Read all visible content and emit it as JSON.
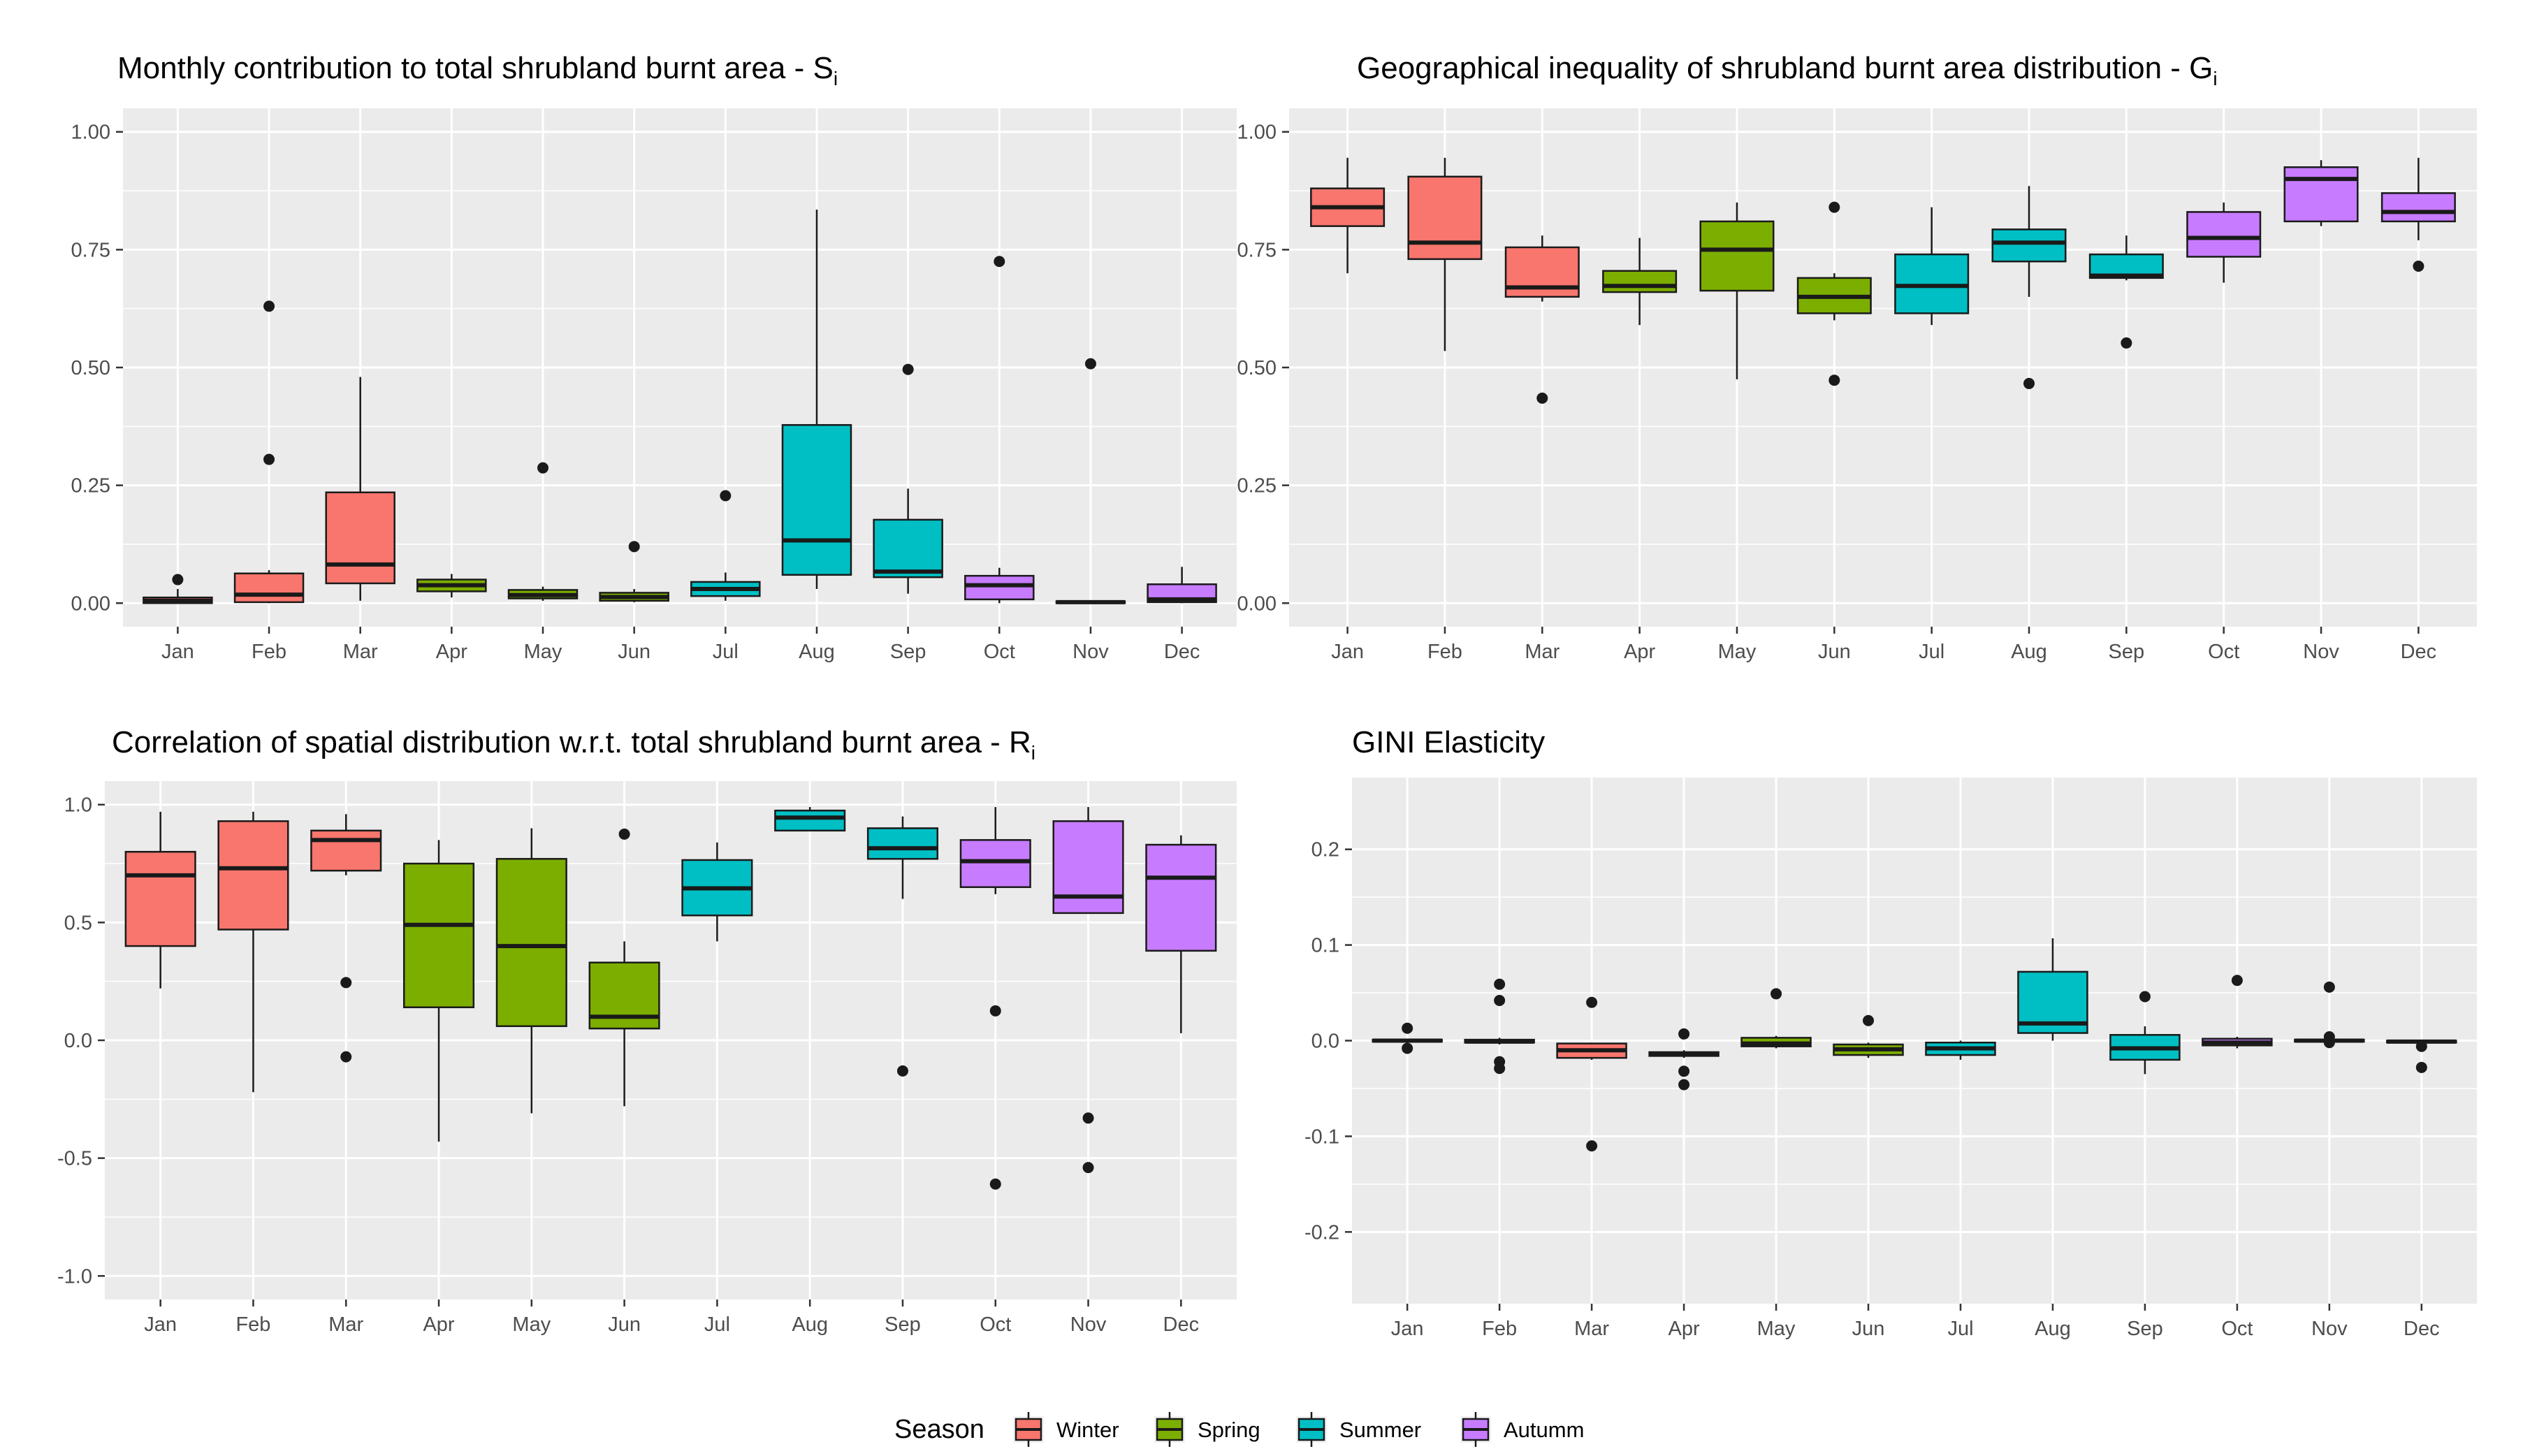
{
  "colors": {
    "winter": "#F8766D",
    "spring": "#7CAE00",
    "summer": "#00BFC4",
    "autumn": "#C77CFF",
    "panel_bg": "#EBEBEB",
    "grid": "#FFFFFF",
    "axis_text": "#4D4D4D",
    "title_text": "#000000"
  },
  "legend": {
    "title": "Season",
    "items": [
      {
        "label": "Winter",
        "season": "winter"
      },
      {
        "label": "Spring",
        "season": "spring"
      },
      {
        "label": "Summer",
        "season": "summer"
      },
      {
        "label": "Autumm",
        "season": "autumn"
      }
    ]
  },
  "chart_data": [
    {
      "type": "box",
      "title": "Monthly contribution to total shrubland burnt area - S",
      "title_sub": "i",
      "ylim": [
        -0.05,
        1.05
      ],
      "yticks": [
        0.0,
        0.25,
        0.5,
        0.75,
        1.0
      ],
      "ytick_labels": [
        "0.00",
        "0.25",
        "0.50",
        "0.75",
        "1.00"
      ],
      "categories": [
        "Jan",
        "Feb",
        "Mar",
        "Apr",
        "May",
        "Jun",
        "Jul",
        "Aug",
        "Sep",
        "Oct",
        "Nov",
        "Dec"
      ],
      "boxes": [
        {
          "season": "winter",
          "min": 0.0,
          "q1": 0.0,
          "median": 0.005,
          "q3": 0.012,
          "max": 0.03,
          "outliers": [
            0.05
          ]
        },
        {
          "season": "winter",
          "min": 0.0,
          "q1": 0.002,
          "median": 0.018,
          "q3": 0.063,
          "max": 0.07,
          "outliers": [
            0.63,
            0.305
          ]
        },
        {
          "season": "winter",
          "min": 0.005,
          "q1": 0.042,
          "median": 0.082,
          "q3": 0.235,
          "max": 0.48,
          "outliers": []
        },
        {
          "season": "spring",
          "min": 0.012,
          "q1": 0.025,
          "median": 0.038,
          "q3": 0.05,
          "max": 0.062,
          "outliers": []
        },
        {
          "season": "spring",
          "min": 0.005,
          "q1": 0.01,
          "median": 0.017,
          "q3": 0.028,
          "max": 0.035,
          "outliers": [
            0.287
          ]
        },
        {
          "season": "spring",
          "min": 0.002,
          "q1": 0.005,
          "median": 0.013,
          "q3": 0.022,
          "max": 0.03,
          "outliers": [
            0.12
          ]
        },
        {
          "season": "summer",
          "min": 0.005,
          "q1": 0.015,
          "median": 0.03,
          "q3": 0.045,
          "max": 0.065,
          "outliers": [
            0.228
          ]
        },
        {
          "season": "summer",
          "min": 0.03,
          "q1": 0.06,
          "median": 0.133,
          "q3": 0.378,
          "max": 0.835,
          "outliers": []
        },
        {
          "season": "summer",
          "min": 0.02,
          "q1": 0.055,
          "median": 0.067,
          "q3": 0.177,
          "max": 0.243,
          "outliers": [
            0.496
          ]
        },
        {
          "season": "autumn",
          "min": 0.0,
          "q1": 0.008,
          "median": 0.038,
          "q3": 0.058,
          "max": 0.075,
          "outliers": [
            0.725
          ]
        },
        {
          "season": "autumn",
          "min": 0.0,
          "q1": 0.0,
          "median": 0.002,
          "q3": 0.004,
          "max": 0.006,
          "outliers": [
            0.508
          ]
        },
        {
          "season": "autumn",
          "min": 0.0,
          "q1": 0.002,
          "median": 0.008,
          "q3": 0.04,
          "max": 0.077,
          "outliers": []
        }
      ]
    },
    {
      "type": "box",
      "title": "Geographical inequality of shrubland burnt area distribution - G",
      "title_sub": "i",
      "ylim": [
        -0.05,
        1.05
      ],
      "yticks": [
        0.0,
        0.25,
        0.5,
        0.75,
        1.0
      ],
      "ytick_labels": [
        "0.00",
        "0.25",
        "0.50",
        "0.75",
        "1.00"
      ],
      "categories": [
        "Jan",
        "Feb",
        "Mar",
        "Apr",
        "May",
        "Jun",
        "Jul",
        "Aug",
        "Sep",
        "Oct",
        "Nov",
        "Dec"
      ],
      "boxes": [
        {
          "season": "winter",
          "min": 0.7,
          "q1": 0.8,
          "median": 0.84,
          "q3": 0.88,
          "max": 0.945,
          "outliers": []
        },
        {
          "season": "winter",
          "min": 0.535,
          "q1": 0.73,
          "median": 0.765,
          "q3": 0.905,
          "max": 0.945,
          "outliers": []
        },
        {
          "season": "winter",
          "min": 0.64,
          "q1": 0.65,
          "median": 0.67,
          "q3": 0.755,
          "max": 0.78,
          "outliers": [
            0.435
          ]
        },
        {
          "season": "spring",
          "min": 0.59,
          "q1": 0.66,
          "median": 0.673,
          "q3": 0.705,
          "max": 0.775,
          "outliers": []
        },
        {
          "season": "spring",
          "min": 0.475,
          "q1": 0.663,
          "median": 0.75,
          "q3": 0.81,
          "max": 0.85,
          "outliers": []
        },
        {
          "season": "spring",
          "min": 0.6,
          "q1": 0.615,
          "median": 0.65,
          "q3": 0.69,
          "max": 0.7,
          "outliers": [
            0.84,
            0.473
          ]
        },
        {
          "season": "summer",
          "min": 0.59,
          "q1": 0.615,
          "median": 0.673,
          "q3": 0.74,
          "max": 0.84,
          "outliers": []
        },
        {
          "season": "summer",
          "min": 0.65,
          "q1": 0.725,
          "median": 0.765,
          "q3": 0.793,
          "max": 0.885,
          "outliers": [
            0.466
          ]
        },
        {
          "season": "summer",
          "min": 0.685,
          "q1": 0.69,
          "median": 0.695,
          "q3": 0.74,
          "max": 0.78,
          "outliers": [
            0.552
          ]
        },
        {
          "season": "autumn",
          "min": 0.68,
          "q1": 0.735,
          "median": 0.775,
          "q3": 0.83,
          "max": 0.85,
          "outliers": []
        },
        {
          "season": "autumn",
          "min": 0.8,
          "q1": 0.81,
          "median": 0.9,
          "q3": 0.925,
          "max": 0.94,
          "outliers": []
        },
        {
          "season": "autumn",
          "min": 0.77,
          "q1": 0.81,
          "median": 0.83,
          "q3": 0.87,
          "max": 0.945,
          "outliers": [
            0.715
          ]
        }
      ]
    },
    {
      "type": "box",
      "title": "Correlation of spatial distribution w.r.t. total shrubland burnt area - R",
      "title_sub": "i",
      "ylim": [
        -1.1,
        1.1
      ],
      "yticks": [
        -1.0,
        -0.5,
        0.0,
        0.5,
        1.0
      ],
      "ytick_labels": [
        "-1.0",
        "-0.5",
        "0.0",
        "0.5",
        "1.0"
      ],
      "categories": [
        "Jan",
        "Feb",
        "Mar",
        "Apr",
        "May",
        "Jun",
        "Jul",
        "Aug",
        "Sep",
        "Oct",
        "Nov",
        "Dec"
      ],
      "boxes": [
        {
          "season": "winter",
          "min": 0.22,
          "q1": 0.4,
          "median": 0.7,
          "q3": 0.8,
          "max": 0.97,
          "outliers": []
        },
        {
          "season": "winter",
          "min": -0.22,
          "q1": 0.47,
          "median": 0.73,
          "q3": 0.93,
          "max": 0.97,
          "outliers": []
        },
        {
          "season": "winter",
          "min": 0.7,
          "q1": 0.72,
          "median": 0.85,
          "q3": 0.89,
          "max": 0.96,
          "outliers": [
            0.245,
            -0.07
          ]
        },
        {
          "season": "spring",
          "min": -0.43,
          "q1": 0.14,
          "median": 0.49,
          "q3": 0.75,
          "max": 0.85,
          "outliers": []
        },
        {
          "season": "spring",
          "min": -0.31,
          "q1": 0.06,
          "median": 0.4,
          "q3": 0.77,
          "max": 0.9,
          "outliers": []
        },
        {
          "season": "spring",
          "min": -0.28,
          "q1": 0.05,
          "median": 0.1,
          "q3": 0.33,
          "max": 0.42,
          "outliers": [
            0.875
          ]
        },
        {
          "season": "summer",
          "min": 0.42,
          "q1": 0.53,
          "median": 0.645,
          "q3": 0.765,
          "max": 0.84,
          "outliers": []
        },
        {
          "season": "summer",
          "min": 0.89,
          "q1": 0.89,
          "median": 0.945,
          "q3": 0.975,
          "max": 0.99,
          "outliers": []
        },
        {
          "season": "summer",
          "min": 0.6,
          "q1": 0.77,
          "median": 0.815,
          "q3": 0.9,
          "max": 0.95,
          "outliers": [
            -0.13
          ]
        },
        {
          "season": "autumn",
          "min": 0.62,
          "q1": 0.65,
          "median": 0.76,
          "q3": 0.85,
          "max": 0.99,
          "outliers": [
            0.125,
            -0.61
          ]
        },
        {
          "season": "autumn",
          "min": 0.54,
          "q1": 0.54,
          "median": 0.61,
          "q3": 0.93,
          "max": 0.99,
          "outliers": [
            -0.33,
            -0.54
          ]
        },
        {
          "season": "autumn",
          "min": 0.03,
          "q1": 0.38,
          "median": 0.69,
          "q3": 0.83,
          "max": 0.87,
          "outliers": []
        }
      ]
    },
    {
      "type": "box",
      "title": "GINI Elasticity",
      "title_sub": "",
      "ylim": [
        -0.275,
        0.275
      ],
      "yticks": [
        -0.2,
        -0.1,
        0.0,
        0.1,
        0.2
      ],
      "ytick_labels": [
        "-0.2",
        "-0.1",
        "0.0",
        "0.1",
        "0.2"
      ],
      "categories": [
        "Jan",
        "Feb",
        "Mar",
        "Apr",
        "May",
        "Jun",
        "Jul",
        "Aug",
        "Sep",
        "Oct",
        "Nov",
        "Dec"
      ],
      "boxes": [
        {
          "season": "winter",
          "min": -0.002,
          "q1": -0.001,
          "median": 0.0,
          "q3": 0.001,
          "max": 0.002,
          "outliers": [
            0.013,
            -0.008
          ]
        },
        {
          "season": "winter",
          "min": -0.004,
          "q1": -0.002,
          "median": -0.001,
          "q3": 0.001,
          "max": 0.003,
          "outliers": [
            0.059,
            0.042,
            -0.022,
            -0.029
          ]
        },
        {
          "season": "winter",
          "min": -0.02,
          "q1": -0.018,
          "median": -0.01,
          "q3": -0.003,
          "max": -0.002,
          "outliers": [
            0.04,
            -0.11
          ]
        },
        {
          "season": "spring",
          "min": -0.018,
          "q1": -0.016,
          "median": -0.014,
          "q3": -0.012,
          "max": -0.01,
          "outliers": [
            0.007,
            -0.032,
            -0.046
          ]
        },
        {
          "season": "spring",
          "min": -0.008,
          "q1": -0.006,
          "median": -0.003,
          "q3": 0.003,
          "max": 0.005,
          "outliers": [
            0.049
          ]
        },
        {
          "season": "spring",
          "min": -0.018,
          "q1": -0.015,
          "median": -0.009,
          "q3": -0.004,
          "max": -0.002,
          "outliers": [
            0.021
          ]
        },
        {
          "season": "summer",
          "min": -0.02,
          "q1": -0.015,
          "median": -0.008,
          "q3": -0.002,
          "max": 0.0,
          "outliers": []
        },
        {
          "season": "summer",
          "min": 0.0,
          "q1": 0.008,
          "median": 0.018,
          "q3": 0.072,
          "max": 0.107,
          "outliers": []
        },
        {
          "season": "summer",
          "min": -0.035,
          "q1": -0.02,
          "median": -0.008,
          "q3": 0.006,
          "max": 0.015,
          "outliers": [
            0.046
          ]
        },
        {
          "season": "autumn",
          "min": -0.008,
          "q1": -0.005,
          "median": -0.002,
          "q3": 0.002,
          "max": 0.004,
          "outliers": [
            0.063
          ]
        },
        {
          "season": "autumn",
          "min": -0.002,
          "q1": -0.001,
          "median": 0.0,
          "q3": 0.001,
          "max": 0.003,
          "outliers": [
            0.056,
            0.004,
            -0.002
          ]
        },
        {
          "season": "autumn",
          "min": -0.003,
          "q1": -0.002,
          "median": -0.001,
          "q3": 0.0,
          "max": 0.001,
          "outliers": [
            -0.006,
            -0.028
          ]
        }
      ]
    }
  ]
}
